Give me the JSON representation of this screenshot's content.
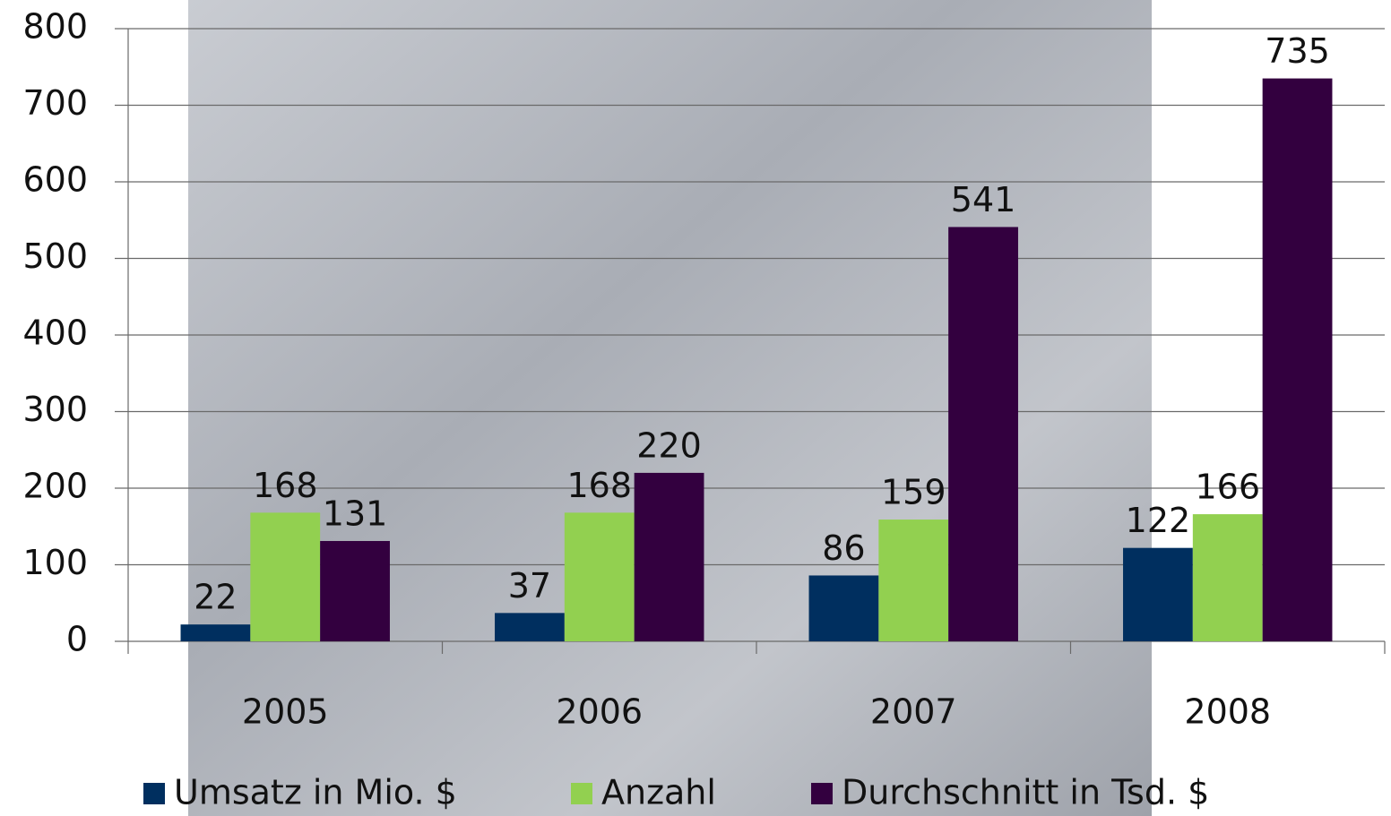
{
  "chart_data": {
    "type": "bar",
    "categories": [
      "2005",
      "2006",
      "2007",
      "2008"
    ],
    "series": [
      {
        "name": "Umsatz in Mio. $",
        "color": "#002f5f",
        "values": [
          22,
          37,
          86,
          122
        ]
      },
      {
        "name": "Anzahl",
        "color": "#92d050",
        "values": [
          168,
          168,
          159,
          166
        ]
      },
      {
        "name": "Durchschnitt in Tsd. $",
        "color": "#33003f",
        "values": [
          131,
          220,
          541,
          735
        ]
      }
    ],
    "ylim": [
      0,
      800
    ],
    "yticks": [
      0,
      100,
      200,
      300,
      400,
      500,
      600,
      700,
      800
    ],
    "grid": true,
    "legend": "bottom"
  }
}
